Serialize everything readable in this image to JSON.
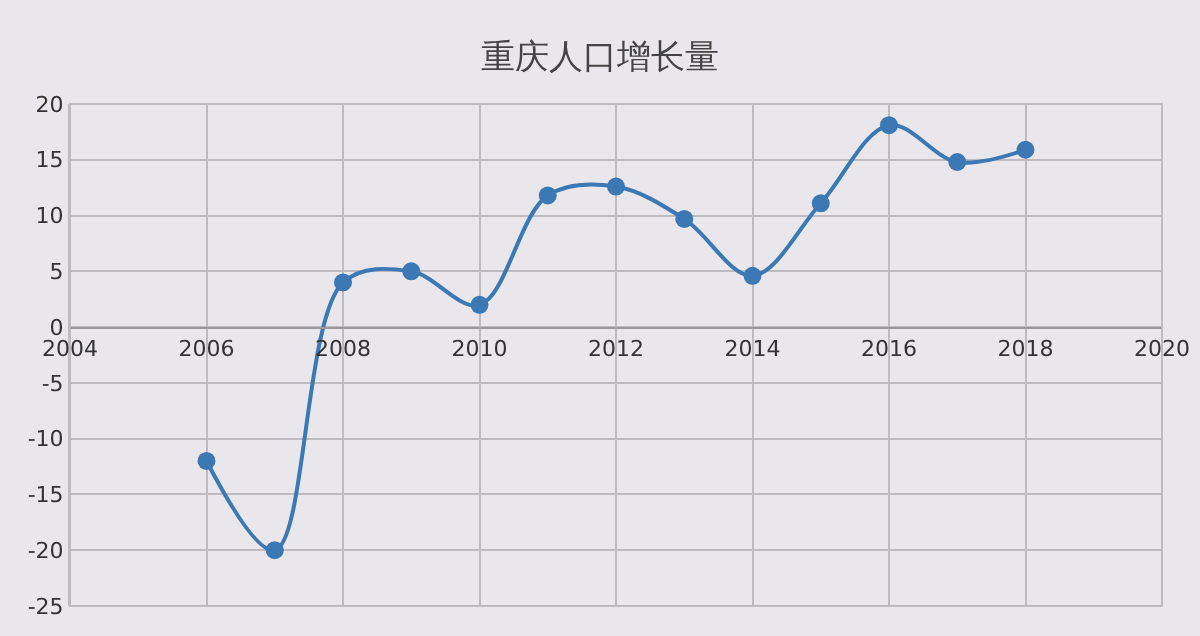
{
  "chart_data": {
    "type": "line",
    "title": "重庆人口增长量",
    "x": [
      2006,
      2007,
      2008,
      2009,
      2010,
      2011,
      2012,
      2013,
      2014,
      2015,
      2016,
      2017,
      2018
    ],
    "series": [
      {
        "color": "#3b78b4",
        "values": [
          -12,
          -20,
          4,
          5,
          2,
          11.8,
          12.6,
          9.7,
          4.6,
          11.1,
          18.1,
          14.8,
          15.9
        ]
      }
    ],
    "xlim": [
      2004,
      2020
    ],
    "xticks": [
      2004,
      2006,
      2008,
      2010,
      2012,
      2014,
      2016,
      2018,
      2020
    ],
    "ylim": [
      -25,
      20
    ],
    "yticks": [
      -25,
      -20,
      -15,
      -10,
      -5,
      0,
      5,
      10,
      15,
      20
    ],
    "grid": true,
    "marker": "circle",
    "line_style": "solid"
  }
}
